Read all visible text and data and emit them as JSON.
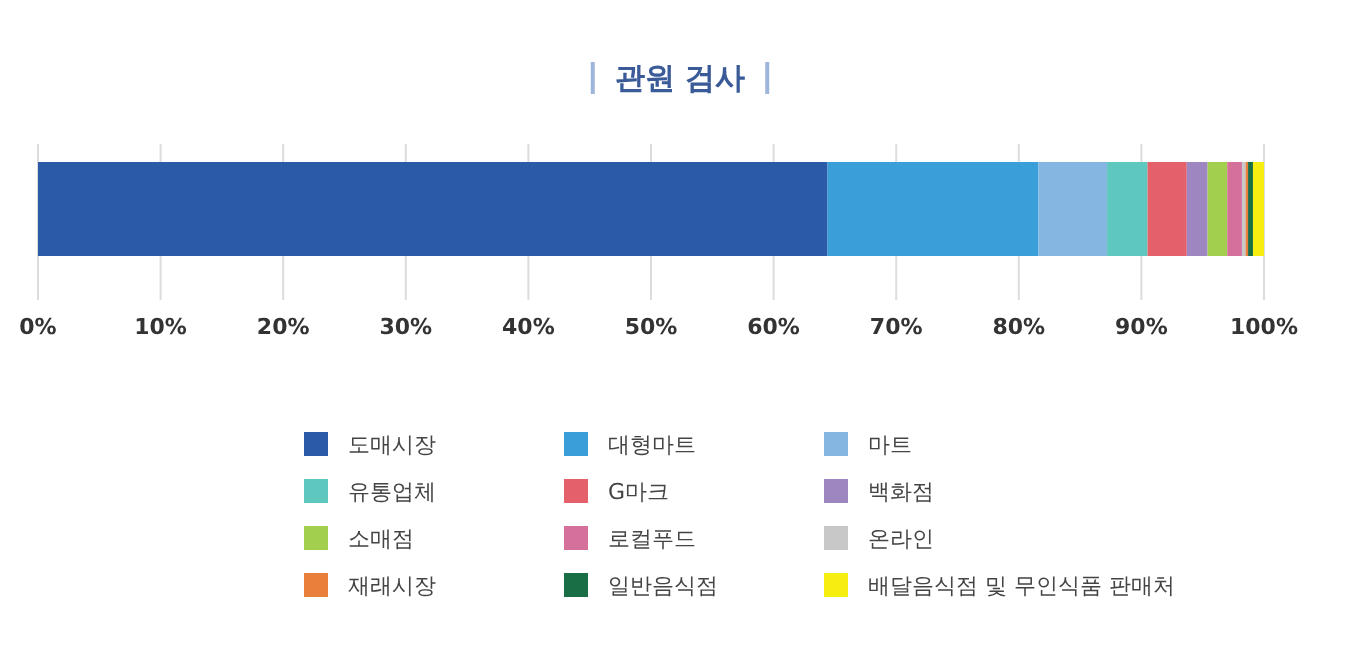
{
  "chart_data": {
    "type": "bar",
    "orientation": "horizontal",
    "stacked": true,
    "title": "관원 검사",
    "categories": [
      null
    ],
    "xlim": [
      0,
      100
    ],
    "xticks": [
      {
        "value": 0,
        "label": "0%"
      },
      {
        "value": 10,
        "label": "10%"
      },
      {
        "value": 20,
        "label": "20%"
      },
      {
        "value": 30,
        "label": "30%"
      },
      {
        "value": 40,
        "label": "40%"
      },
      {
        "value": 50,
        "label": "50%"
      },
      {
        "value": 60,
        "label": "60%"
      },
      {
        "value": 70,
        "label": "70%"
      },
      {
        "value": 80,
        "label": "80%"
      },
      {
        "value": 90,
        "label": "90%"
      },
      {
        "value": 100,
        "label": "100%"
      }
    ],
    "grid": "x",
    "legend": "bottom",
    "series": [
      {
        "name": "도매시장",
        "color": "#2a5aa8",
        "values": [
          64.4
        ]
      },
      {
        "name": "대형마트",
        "color": "#3a9ed8",
        "values": [
          17.2
        ]
      },
      {
        "name": "마트",
        "color": "#85b6e2",
        "values": [
          5.6
        ]
      },
      {
        "name": "유통업체",
        "color": "#5ec8bf",
        "values": [
          3.3
        ]
      },
      {
        "name": "G마크",
        "color": "#e4606a",
        "values": [
          3.2
        ]
      },
      {
        "name": "백화점",
        "color": "#9e86c1",
        "values": [
          1.7
        ]
      },
      {
        "name": "소매점",
        "color": "#a3cf4f",
        "values": [
          1.6
        ]
      },
      {
        "name": "로컬푸드",
        "color": "#d5709a",
        "values": [
          1.2
        ]
      },
      {
        "name": "온라인",
        "color": "#c8c8c8",
        "values": [
          0.3
        ]
      },
      {
        "name": "재래시장",
        "color": "#e87f3a",
        "values": [
          0.2
        ]
      },
      {
        "name": "일반음식점",
        "color": "#1a6e45",
        "values": [
          0.4
        ]
      },
      {
        "name": "배달음식점 및 무인식품 판매처",
        "color": "#f5ee0f",
        "values": [
          0.9
        ]
      }
    ]
  }
}
